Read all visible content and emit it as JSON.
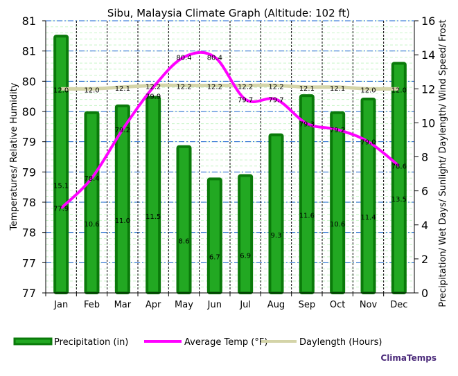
{
  "chart_data": {
    "type": "bar+line",
    "title": "Sibu, Malaysia Climate Graph (Altitude: 102 ft)",
    "categories": [
      "Jan",
      "Feb",
      "Mar",
      "Apr",
      "May",
      "Jun",
      "Jul",
      "Aug",
      "Sep",
      "Oct",
      "Nov",
      "Dec"
    ],
    "ylabel_left": "Temperatures/ Relative Humidity",
    "ylabel_right": "Precipitation/ Wet Days/ Sunlight/ Daylength/ Wind Speed/ Frost",
    "ylim_left": [
      76.5,
      81
    ],
    "left_tick_labels": [
      "77",
      "77",
      "78",
      "78",
      "79",
      "79",
      "80",
      "80",
      "81",
      "81"
    ],
    "ylim_right": [
      0,
      16
    ],
    "right_tick_labels": [
      "0",
      "2",
      "4",
      "6",
      "8",
      "10",
      "12",
      "14",
      "16"
    ],
    "grid": true,
    "legend_position": "bottom",
    "series": [
      {
        "name": "Precipitation (in)",
        "type": "bar",
        "axis": "right",
        "color": "#1a9c1a",
        "values": [
          15.1,
          10.6,
          11.0,
          11.5,
          8.6,
          6.7,
          6.9,
          9.3,
          11.6,
          10.6,
          11.4,
          13.5
        ]
      },
      {
        "name": "Average Temp (°F)",
        "type": "line",
        "axis": "left",
        "color": "#ff00ff",
        "values": [
          77.9,
          78.4,
          79.2,
          79.9,
          80.4,
          80.4,
          79.7,
          79.7,
          79.3,
          79.2,
          79.0,
          78.6
        ]
      },
      {
        "name": "Daylength (Hours)",
        "type": "line",
        "axis": "right",
        "color": "#d4d4a8",
        "values": [
          12.0,
          12.0,
          12.1,
          12.2,
          12.2,
          12.2,
          12.2,
          12.2,
          12.1,
          12.1,
          12.0,
          12.0
        ]
      }
    ]
  },
  "brand": "ClimaTemps"
}
